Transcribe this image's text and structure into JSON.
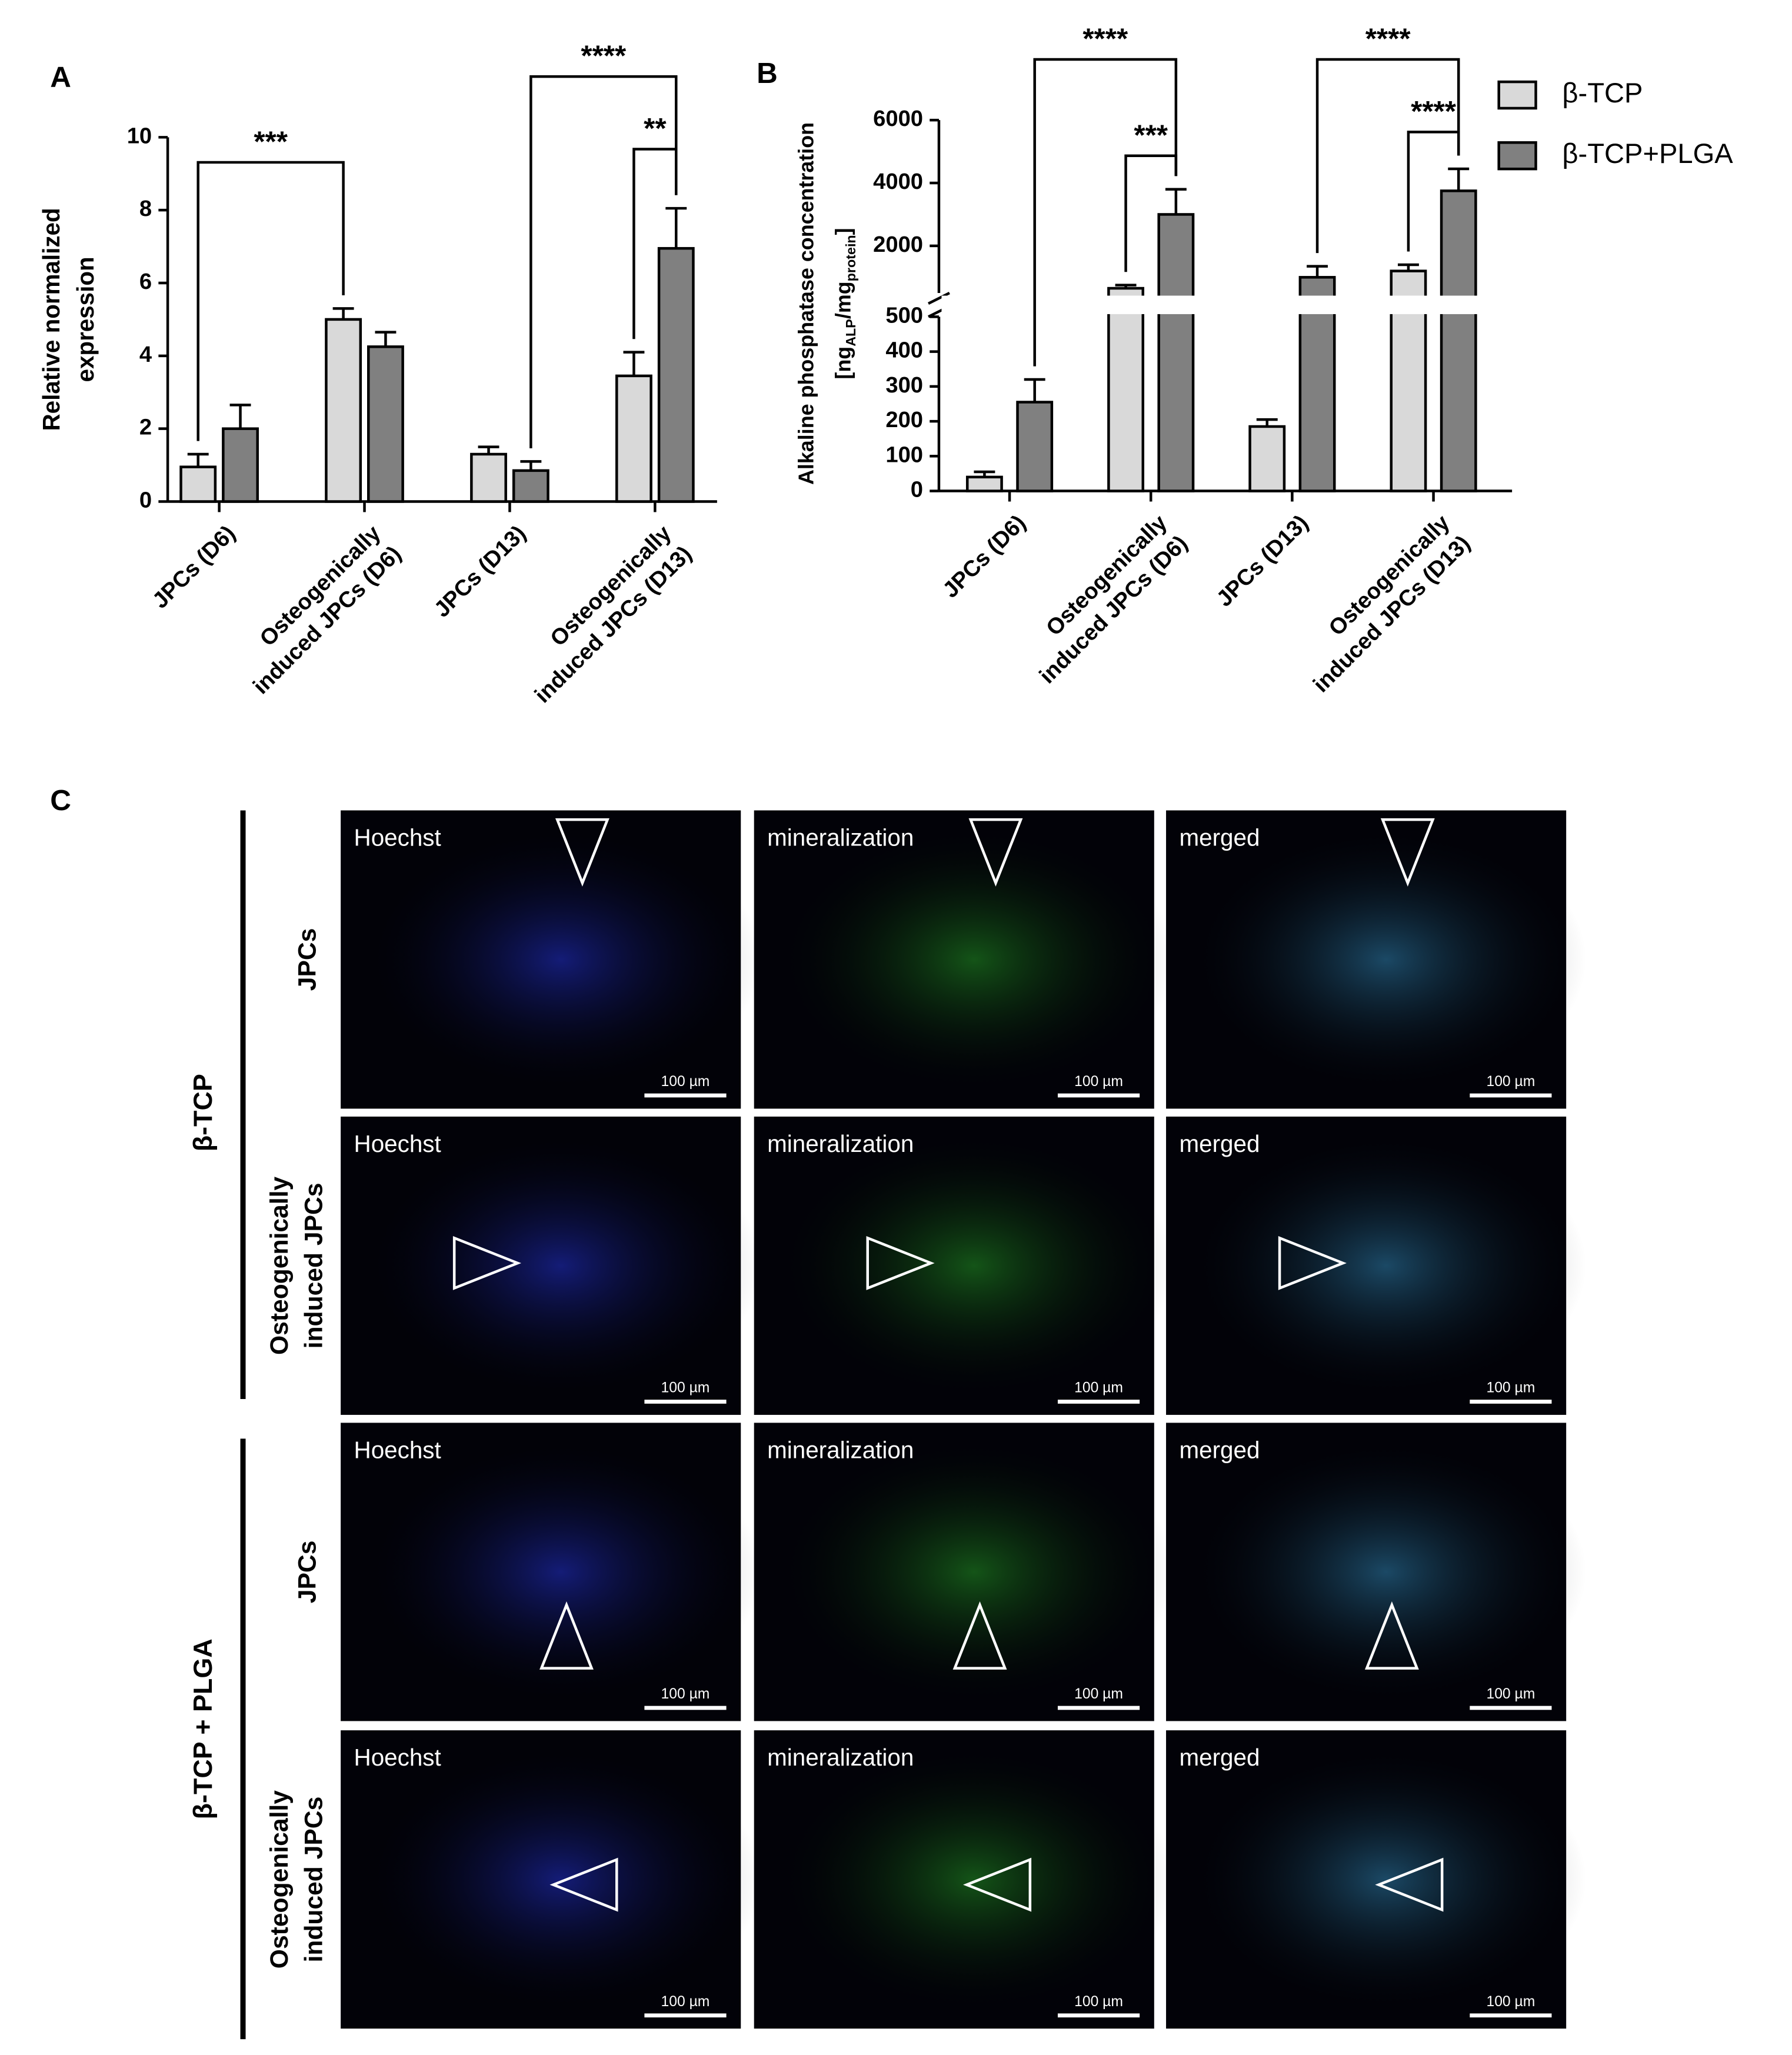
{
  "chart_data": [
    {
      "type": "bar",
      "panel": "A",
      "ylabel": [
        [
          "Relative normalized"
        ],
        [
          "expression"
        ]
      ],
      "categories": [
        [
          "JPCs (D6)"
        ],
        [
          "Osteogenically",
          "induced JPCs (D6)"
        ],
        [
          "JPCs (D13)"
        ],
        [
          "Osteogenically",
          "induced JPCs (D13)"
        ]
      ],
      "series": [
        {
          "color": "#d9d9d9",
          "values": [
            0.95,
            5.0,
            1.3,
            3.45
          ],
          "errors": [
            0.35,
            0.3,
            0.2,
            0.65
          ]
        },
        {
          "color": "#808080",
          "values": [
            2.0,
            4.25,
            0.85,
            6.95
          ],
          "errors": [
            0.65,
            0.4,
            0.25,
            1.1
          ]
        }
      ],
      "ylim": [
        0,
        10
      ],
      "yticks": [
        0,
        2,
        4,
        6,
        8,
        10
      ],
      "annotations": [
        {
          "label": "***",
          "from": [
            0,
            0
          ],
          "to": [
            1,
            0
          ]
        },
        {
          "label": "****",
          "from": [
            2,
            1
          ],
          "to": [
            3,
            1
          ]
        },
        {
          "label": "**",
          "from": [
            3,
            0
          ],
          "to": [
            3,
            1
          ]
        }
      ]
    },
    {
      "type": "bar",
      "panel": "B",
      "ylabel": [
        [
          "Alkaline phosphatase concentration"
        ],
        [
          "[ng",
          "ALP",
          "/mg",
          "protein",
          "]"
        ]
      ],
      "categories": [
        [
          "JPCs (D6)"
        ],
        [
          "Osteogenically",
          "induced JPCs (D6)"
        ],
        [
          "JPCs (D13)"
        ],
        [
          "Osteogenically",
          "induced JPCs (D13)"
        ]
      ],
      "series": [
        {
          "name": "β-TCP",
          "color": "#d9d9d9",
          "values": [
            40,
            650,
            185,
            1200
          ],
          "errors": [
            15,
            100,
            20,
            200
          ]
        },
        {
          "name": "β-TCP+PLGA",
          "color": "#808080",
          "values": [
            255,
            3000,
            1000,
            3750
          ],
          "errors": [
            65,
            800,
            350,
            700
          ]
        }
      ],
      "ylim_segments": [
        [
          0,
          500
        ],
        [
          500,
          6000
        ]
      ],
      "yticks": [
        0,
        100,
        200,
        300,
        400,
        500,
        2000,
        4000,
        6000
      ],
      "legend": "top-right",
      "annotations": [
        {
          "label": "****",
          "from": [
            0,
            1
          ],
          "to": [
            1,
            1
          ]
        },
        {
          "label": "***",
          "from": [
            1,
            0
          ],
          "to": [
            1,
            1
          ]
        },
        {
          "label": "****",
          "from": [
            2,
            1
          ],
          "to": [
            3,
            1
          ]
        },
        {
          "label": "****",
          "from": [
            3,
            0
          ],
          "to": [
            3,
            1
          ]
        }
      ]
    }
  ],
  "panel_c": {
    "panel": "C",
    "group_labels": [
      "β-TCP",
      "β-TCP + PLGA"
    ],
    "row_labels": [
      [
        "JPCs"
      ],
      [
        "Osteogenically",
        "induced JPCs"
      ],
      [
        "JPCs"
      ],
      [
        "Osteogenically",
        "induced JPCs"
      ]
    ],
    "channel_labels": [
      "Hoechst",
      "mineralization",
      "merged"
    ],
    "scale_bar": "100 µm"
  }
}
